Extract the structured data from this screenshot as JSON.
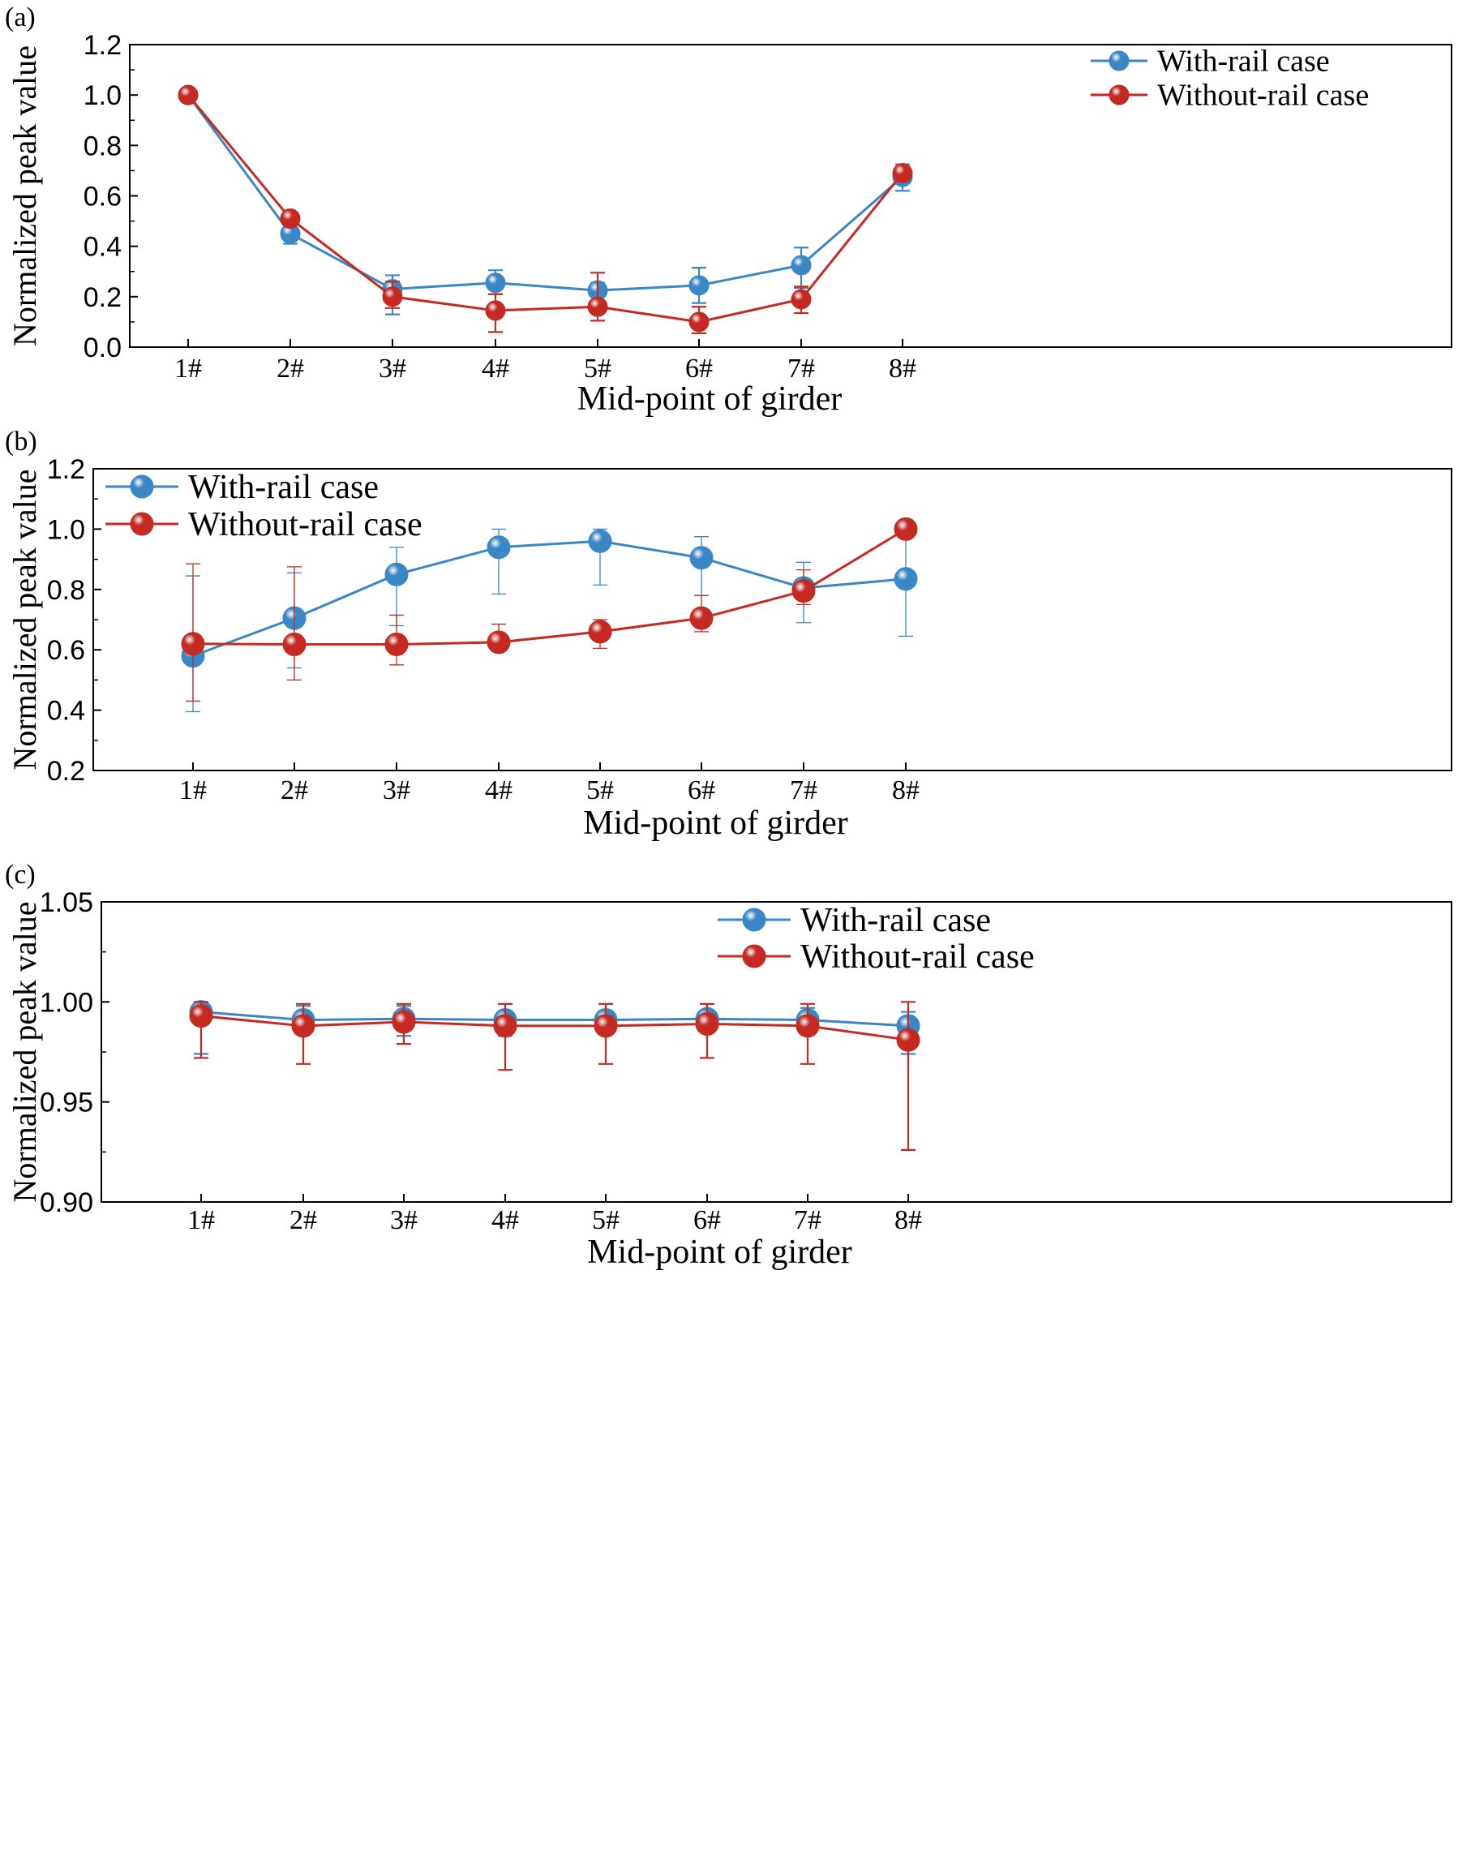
{
  "colors": {
    "with_rail": "#3b87c6",
    "without_rail": "#c42a22",
    "axis": "#000000"
  },
  "chart_data": [
    {
      "panel_label": "(a)",
      "type": "line",
      "categories": [
        "1#",
        "2#",
        "3#",
        "4#",
        "5#",
        "6#",
        "7#",
        "8#"
      ],
      "xlabel": "Mid-point of girder",
      "ylabel": "Normalized peak value",
      "ylim": [
        0.0,
        1.2
      ],
      "yticks": [
        "0.0",
        "0.2",
        "0.4",
        "0.6",
        "0.8",
        "1.0",
        "1.2"
      ],
      "legend_position": "top-right",
      "series": [
        {
          "name": "With-rail case",
          "color": "#3b87c6",
          "values": [
            1.0,
            0.45,
            0.23,
            0.255,
            0.225,
            0.245,
            0.325,
            0.675
          ],
          "error_low": [
            1.0,
            0.41,
            0.13,
            0.21,
            0.2,
            0.175,
            0.235,
            0.62
          ],
          "error_high": [
            1.0,
            0.49,
            0.285,
            0.305,
            0.255,
            0.315,
            0.395,
            0.725
          ]
        },
        {
          "name": "Without-rail case",
          "color": "#c42a22",
          "values": [
            1.0,
            0.51,
            0.2,
            0.145,
            0.16,
            0.1,
            0.19,
            0.69
          ],
          "error_low": [
            1.0,
            0.49,
            0.155,
            0.06,
            0.105,
            0.055,
            0.135,
            0.67
          ],
          "error_high": [
            1.0,
            0.53,
            0.26,
            0.21,
            0.295,
            0.16,
            0.24,
            0.71
          ]
        }
      ]
    },
    {
      "panel_label": "(b)",
      "type": "line",
      "categories": [
        "1#",
        "2#",
        "3#",
        "4#",
        "5#",
        "6#",
        "7#",
        "8#"
      ],
      "xlabel": "Mid-point of girder",
      "ylabel": "Normalized peak value",
      "ylim": [
        0.2,
        1.2
      ],
      "yticks": [
        "0.2",
        "0.4",
        "0.6",
        "0.8",
        "1.0",
        "1.2"
      ],
      "legend_position": "top-left",
      "series": [
        {
          "name": "With-rail case",
          "color": "#3b87c6",
          "values": [
            0.58,
            0.705,
            0.85,
            0.94,
            0.96,
            0.905,
            0.805,
            0.835
          ],
          "error_low": [
            0.395,
            0.54,
            0.68,
            0.785,
            0.815,
            0.78,
            0.69,
            0.645
          ],
          "error_high": [
            0.845,
            0.855,
            0.94,
            1.0,
            1.0,
            0.975,
            0.89,
            1.0
          ]
        },
        {
          "name": "Without-rail case",
          "color": "#c42a22",
          "values": [
            0.62,
            0.618,
            0.618,
            0.625,
            0.66,
            0.705,
            0.795,
            1.0
          ],
          "error_low": [
            0.43,
            0.5,
            0.55,
            0.595,
            0.605,
            0.66,
            0.75,
            1.0
          ],
          "error_high": [
            0.885,
            0.875,
            0.715,
            0.685,
            0.7,
            0.78,
            0.865,
            1.0
          ]
        }
      ]
    },
    {
      "panel_label": "(c)",
      "type": "line",
      "categories": [
        "1#",
        "2#",
        "3#",
        "4#",
        "5#",
        "6#",
        "7#",
        "8#"
      ],
      "xlabel": "Mid-point of girder",
      "ylabel": "Normalized peak value",
      "ylim": [
        0.9,
        1.05
      ],
      "yticks": [
        "0.90",
        "0.95",
        "1.00",
        "1.05"
      ],
      "legend_position": "top-right",
      "series": [
        {
          "name": "With-rail case",
          "color": "#3b87c6",
          "values": [
            0.995,
            0.991,
            0.9915,
            0.991,
            0.991,
            0.9915,
            0.991,
            0.988
          ],
          "error_low": [
            0.974,
            0.986,
            0.983,
            0.983,
            0.986,
            0.987,
            0.984,
            0.974
          ],
          "error_high": [
            0.999,
            0.998,
            0.998,
            0.999,
            0.999,
            0.999,
            0.997,
            0.995
          ]
        },
        {
          "name": "Without-rail case",
          "color": "#c42a22",
          "values": [
            0.993,
            0.988,
            0.99,
            0.988,
            0.988,
            0.989,
            0.988,
            0.981
          ],
          "error_low": [
            0.972,
            0.969,
            0.979,
            0.966,
            0.969,
            0.972,
            0.969,
            0.926
          ],
          "error_high": [
            1.0,
            0.999,
            0.999,
            0.999,
            0.999,
            0.999,
            0.999,
            1.0
          ]
        }
      ]
    }
  ]
}
